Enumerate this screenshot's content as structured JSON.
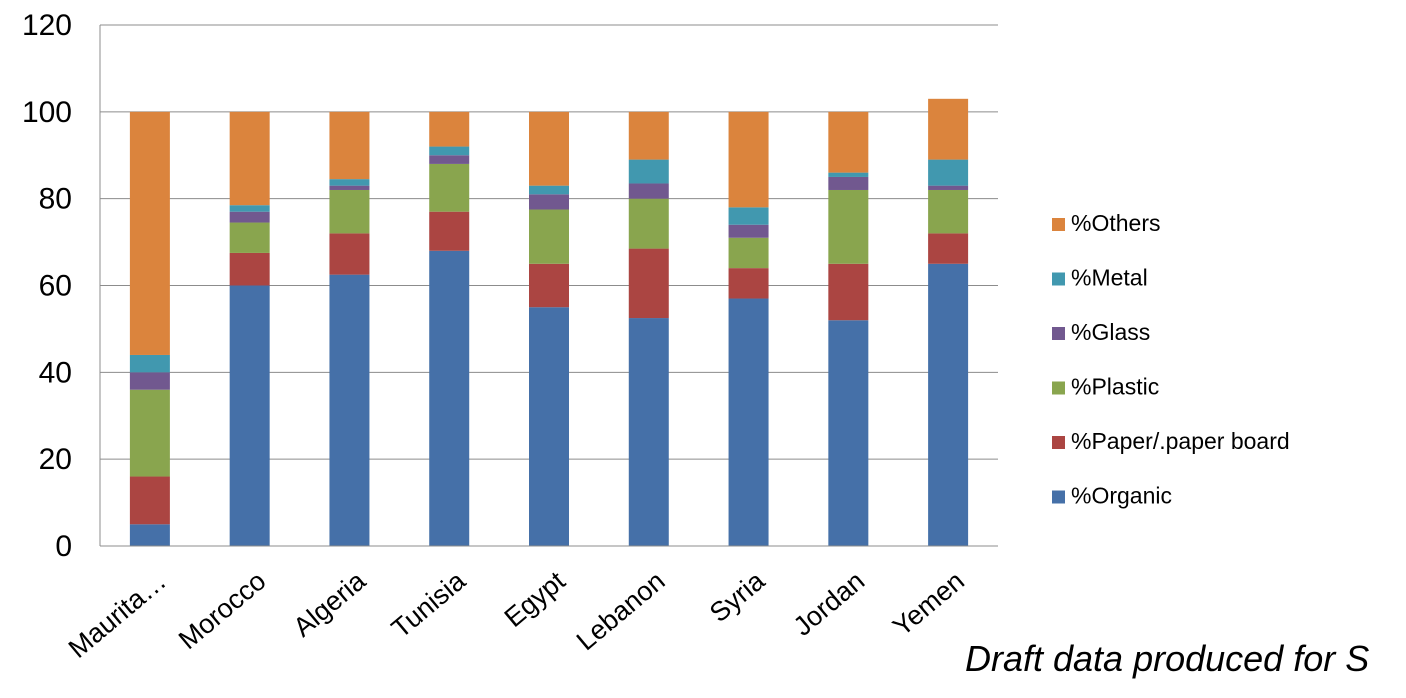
{
  "chart_data": {
    "type": "bar",
    "stacked": true,
    "categories": [
      "Maurita…",
      "Morocco",
      "Algeria",
      "Tunisia",
      "Egypt",
      "Lebanon",
      "Syria",
      "Jordan",
      "Yemen"
    ],
    "series": [
      {
        "name": "%Organic",
        "color": "#4570A8",
        "values": [
          5,
          60,
          62.5,
          68,
          55,
          52.5,
          57,
          52,
          65
        ]
      },
      {
        "name": "%Paper/.paper board",
        "color": "#AB4542",
        "values": [
          11,
          7.5,
          9.5,
          9,
          10,
          16,
          7,
          13,
          7
        ]
      },
      {
        "name": "%Plastic",
        "color": "#89A54E",
        "values": [
          20,
          7,
          10,
          11,
          12.5,
          11.5,
          7,
          17,
          10
        ]
      },
      {
        "name": "%Glass",
        "color": "#71588F",
        "values": [
          4,
          2.5,
          1,
          2,
          3.5,
          3.5,
          3,
          3,
          1
        ]
      },
      {
        "name": "%Metal",
        "color": "#4198AF",
        "values": [
          4,
          1.5,
          1.5,
          2,
          2,
          5.5,
          4,
          1,
          6
        ]
      },
      {
        "name": "%Others",
        "color": "#DB843D",
        "values": [
          56,
          21.5,
          15.5,
          8,
          17,
          11,
          22,
          14,
          14
        ]
      }
    ],
    "ylim": [
      0,
      120
    ],
    "yticks": [
      "0",
      "20",
      "40",
      "60",
      "80",
      "100",
      "120"
    ],
    "grid": true,
    "legend_position": "right",
    "title": "",
    "xlabel": "",
    "ylabel": ""
  },
  "note": "Draft data produced for S"
}
